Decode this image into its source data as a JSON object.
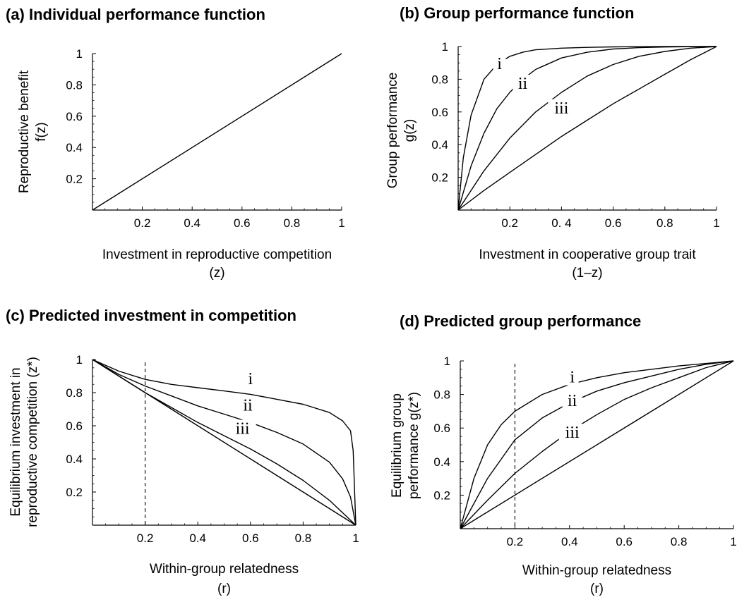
{
  "chart_data": [
    {
      "panel": "a",
      "type": "line",
      "title": "(a) Individual performance function",
      "ylabel_lines": [
        "Reproductive benefit",
        "f(z)"
      ],
      "xlabel_lines": [
        "Investment in reproductive competition",
        "(z)"
      ],
      "xlim": [
        0,
        1
      ],
      "ylim": [
        0,
        1
      ],
      "x_ticks": [
        "0.2",
        "0.4",
        "0.6",
        "0.8",
        "1"
      ],
      "y_ticks": [
        "0.2",
        "0.4",
        "0.6",
        "0.8",
        "1"
      ],
      "grid": false,
      "series": [
        {
          "x": [
            0,
            1
          ],
          "y": [
            0,
            1
          ],
          "style": "solid"
        }
      ]
    },
    {
      "panel": "b",
      "type": "line",
      "title": "(b) Group performance function",
      "ylabel_lines": [
        "Group performance",
        "g(z)"
      ],
      "xlabel_lines": [
        "Investment in cooperative group trait",
        "(1–z)"
      ],
      "xlim": [
        0,
        1
      ],
      "ylim": [
        0,
        1
      ],
      "x_ticks": [
        "0.2",
        "0. 4",
        "0.6",
        "0.8",
        "1"
      ],
      "y_ticks": [
        "0.2",
        "0.4",
        "0.6",
        "0.8",
        "1"
      ],
      "grid": false,
      "series": [
        {
          "name": "i",
          "x": [
            0,
            0.02,
            0.05,
            0.1,
            0.15,
            0.2,
            0.25,
            0.3,
            0.4,
            0.5,
            0.6,
            0.7,
            0.8,
            0.9,
            1
          ],
          "y": [
            0,
            0.32,
            0.58,
            0.8,
            0.89,
            0.94,
            0.965,
            0.98,
            0.99,
            0.995,
            0.998,
            0.999,
            1,
            1,
            1
          ]
        },
        {
          "name": "ii",
          "x": [
            0,
            0.05,
            0.1,
            0.15,
            0.2,
            0.25,
            0.3,
            0.4,
            0.5,
            0.6,
            0.7,
            0.8,
            0.9,
            1
          ],
          "y": [
            0,
            0.27,
            0.47,
            0.62,
            0.72,
            0.8,
            0.86,
            0.93,
            0.965,
            0.985,
            0.993,
            0.997,
            0.999,
            1
          ]
        },
        {
          "name": "iii",
          "x": [
            0,
            0.1,
            0.2,
            0.3,
            0.4,
            0.5,
            0.6,
            0.7,
            0.8,
            0.9,
            1
          ],
          "y": [
            0,
            0.24,
            0.44,
            0.6,
            0.72,
            0.82,
            0.89,
            0.94,
            0.97,
            0.99,
            1
          ]
        },
        {
          "x": [
            0,
            0.1,
            0.2,
            0.3,
            0.4,
            0.5,
            0.6,
            0.7,
            0.8,
            0.9,
            1
          ],
          "y": [
            0,
            0.12,
            0.23,
            0.34,
            0.45,
            0.55,
            0.65,
            0.74,
            0.83,
            0.92,
            1
          ]
        }
      ],
      "curve_labels": [
        {
          "text": "i",
          "x": 0.16,
          "y": 0.87
        },
        {
          "text": "ii",
          "x": 0.25,
          "y": 0.75
        },
        {
          "text": "iii",
          "x": 0.4,
          "y": 0.6
        }
      ]
    },
    {
      "panel": "c",
      "type": "line",
      "title": "(c) Predicted investment in competition",
      "ylabel_lines": [
        "Equilibrium investment in",
        "reproductive competition (z*)"
      ],
      "xlabel_lines": [
        "Within-group relatedness",
        "(r)"
      ],
      "xlim": [
        0,
        1
      ],
      "ylim": [
        0,
        1
      ],
      "x_ticks": [
        "0.2",
        "0.4",
        "0.6",
        "0.8",
        "1"
      ],
      "y_ticks": [
        "0.2",
        "0.4",
        "0.6",
        "0.8",
        "1"
      ],
      "grid": false,
      "reference_line_x": 0.2,
      "series": [
        {
          "name": "i",
          "x": [
            0,
            0.1,
            0.2,
            0.3,
            0.4,
            0.5,
            0.6,
            0.7,
            0.8,
            0.9,
            0.95,
            0.98,
            0.99,
            1
          ],
          "y": [
            1,
            0.93,
            0.88,
            0.85,
            0.83,
            0.81,
            0.79,
            0.76,
            0.73,
            0.68,
            0.63,
            0.57,
            0.45,
            0
          ]
        },
        {
          "name": "ii",
          "x": [
            0,
            0.1,
            0.2,
            0.3,
            0.4,
            0.5,
            0.6,
            0.7,
            0.8,
            0.9,
            0.95,
            0.98,
            1
          ],
          "y": [
            1,
            0.91,
            0.84,
            0.78,
            0.72,
            0.67,
            0.62,
            0.56,
            0.49,
            0.38,
            0.28,
            0.17,
            0
          ]
        },
        {
          "name": "iii",
          "x": [
            0,
            0.1,
            0.2,
            0.3,
            0.4,
            0.5,
            0.6,
            0.7,
            0.8,
            0.9,
            1
          ],
          "y": [
            1,
            0.9,
            0.8,
            0.71,
            0.62,
            0.54,
            0.46,
            0.37,
            0.27,
            0.15,
            0
          ]
        },
        {
          "x": [
            0,
            1
          ],
          "y": [
            1,
            0
          ]
        }
      ],
      "curve_labels": [
        {
          "text": "i",
          "x": 0.6,
          "y": 0.86
        },
        {
          "text": "ii",
          "x": 0.59,
          "y": 0.7
        },
        {
          "text": "iii",
          "x": 0.57,
          "y": 0.56
        }
      ]
    },
    {
      "panel": "d",
      "type": "line",
      "title": "(d) Predicted group performance",
      "ylabel_lines": [
        "Equilibrium group",
        "performance g(z*)"
      ],
      "xlabel_lines": [
        "Within-group relatedness",
        "(r)"
      ],
      "xlim": [
        0,
        1
      ],
      "ylim": [
        0,
        1
      ],
      "x_ticks": [
        "0.2",
        "0.4",
        "0.6",
        "0.8",
        "1"
      ],
      "y_ticks": [
        "0.2",
        "0.4",
        "0.6",
        "0.8",
        "1"
      ],
      "grid": false,
      "reference_line_x": 0.2,
      "series": [
        {
          "name": "i",
          "x": [
            0,
            0.05,
            0.1,
            0.15,
            0.2,
            0.3,
            0.4,
            0.5,
            0.6,
            0.7,
            0.8,
            0.9,
            1
          ],
          "y": [
            0,
            0.3,
            0.5,
            0.62,
            0.7,
            0.8,
            0.86,
            0.9,
            0.93,
            0.95,
            0.97,
            0.985,
            1
          ]
        },
        {
          "name": "ii",
          "x": [
            0,
            0.1,
            0.2,
            0.3,
            0.4,
            0.5,
            0.6,
            0.7,
            0.8,
            0.9,
            1
          ],
          "y": [
            0,
            0.3,
            0.53,
            0.66,
            0.75,
            0.82,
            0.87,
            0.91,
            0.95,
            0.98,
            1
          ]
        },
        {
          "name": "iii",
          "x": [
            0,
            0.1,
            0.2,
            0.3,
            0.4,
            0.5,
            0.6,
            0.7,
            0.8,
            0.9,
            1
          ],
          "y": [
            0,
            0.17,
            0.33,
            0.46,
            0.58,
            0.68,
            0.77,
            0.84,
            0.9,
            0.96,
            1
          ]
        },
        {
          "x": [
            0,
            1
          ],
          "y": [
            0,
            1
          ]
        }
      ],
      "curve_labels": [
        {
          "text": "i",
          "x": 0.41,
          "y": 0.88
        },
        {
          "text": "ii",
          "x": 0.41,
          "y": 0.74
        },
        {
          "text": "iii",
          "x": 0.41,
          "y": 0.55
        }
      ]
    }
  ]
}
